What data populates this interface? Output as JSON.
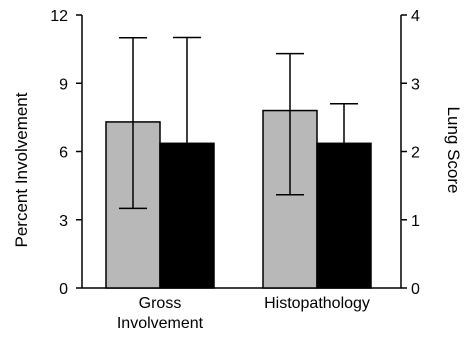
{
  "chart_data": {
    "type": "bar",
    "title": "",
    "categories": [
      "Gross Involvement",
      "Histopathology"
    ],
    "category_lines": [
      [
        "Gross",
        "Involvement"
      ],
      [
        "Histopathology"
      ]
    ],
    "left_axis": {
      "label": "Percent Involvement",
      "ylim": [
        0,
        12
      ],
      "ticks": [
        "0",
        "3",
        "6",
        "9",
        "12"
      ]
    },
    "right_axis": {
      "label": "Lung Score",
      "ylim": [
        0,
        4
      ],
      "ticks": [
        "0",
        "1",
        "2",
        "3",
        "4"
      ]
    },
    "series": [
      {
        "color": "#b8b8b8",
        "axis": "left",
        "values": [
          7.3,
          7.8
        ],
        "error_low": [
          3.5,
          4.1
        ],
        "error_high": [
          11.0,
          10.3
        ]
      },
      {
        "color": "#000000",
        "axis": "right",
        "values": [
          2.12,
          2.12
        ],
        "error_low": [
          2.12,
          2.12
        ],
        "error_high": [
          3.67,
          2.7
        ]
      }
    ],
    "grid": false,
    "legend": "none"
  }
}
